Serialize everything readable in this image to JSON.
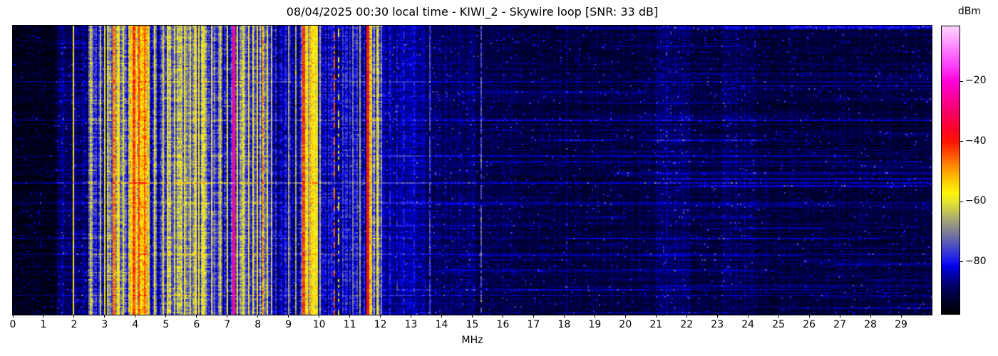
{
  "chart_data": {
    "type": "heatmap",
    "subtype": "spectrogram-waterfall",
    "title": "08/04/2025 00:30 local time - KIWI_2 - Skywire loop [SNR: 33 dB]",
    "xlabel": "MHz",
    "ylabel": "",
    "x_range": [
      0,
      30
    ],
    "x_ticks": [
      0,
      1,
      2,
      3,
      4,
      5,
      6,
      7,
      8,
      9,
      10,
      11,
      12,
      13,
      14,
      15,
      16,
      17,
      18,
      19,
      20,
      21,
      22,
      23,
      24,
      25,
      26,
      27,
      28,
      29
    ],
    "grid": false,
    "text_color": "#000000",
    "colorbar": {
      "label": "dBm",
      "position": "right",
      "vmin": -97.5,
      "vmax": -1.5,
      "ticks": [
        {
          "v": -20,
          "label": "−20"
        },
        {
          "v": -40,
          "label": "−40"
        },
        {
          "v": -60,
          "label": "−60"
        },
        {
          "v": -80,
          "label": "−80"
        }
      ],
      "stops": [
        {
          "t": 0.0,
          "color": "#000004"
        },
        {
          "t": 0.05,
          "color": "#000030"
        },
        {
          "t": 0.1,
          "color": "#00006a"
        },
        {
          "t": 0.14,
          "color": "#0000b4"
        },
        {
          "t": 0.165,
          "color": "#0000e6"
        },
        {
          "t": 0.182,
          "color": "#1414f0"
        },
        {
          "t": 0.21,
          "color": "#3232dc"
        },
        {
          "t": 0.25,
          "color": "#5a5ab4"
        },
        {
          "t": 0.29,
          "color": "#828294"
        },
        {
          "t": 0.33,
          "color": "#a8a871"
        },
        {
          "t": 0.365,
          "color": "#cccc4a"
        },
        {
          "t": 0.391,
          "color": "#e6e62e"
        },
        {
          "t": 0.42,
          "color": "#fdf409"
        },
        {
          "t": 0.46,
          "color": "#ffcd00"
        },
        {
          "t": 0.51,
          "color": "#ff9000"
        },
        {
          "t": 0.555,
          "color": "#ff5000"
        },
        {
          "t": 0.599,
          "color": "#ff1400"
        },
        {
          "t": 0.65,
          "color": "#ff0030"
        },
        {
          "t": 0.7,
          "color": "#f70064"
        },
        {
          "t": 0.755,
          "color": "#ff009e"
        },
        {
          "t": 0.807,
          "color": "#ff00d8"
        },
        {
          "t": 0.86,
          "color": "#fb3cf8"
        },
        {
          "t": 0.92,
          "color": "#ff7dff"
        },
        {
          "t": 0.97,
          "color": "#ffb5ff"
        },
        {
          "t": 1.0,
          "color": "#fdd2fd"
        }
      ]
    },
    "bands": [
      {
        "f0": 0.0,
        "f1": 1.42,
        "db": -94.5,
        "col": 1.0,
        "cell": 3.2
      },
      {
        "f0": 1.42,
        "f1": 1.95,
        "db": -88.0,
        "col": 2.5,
        "cell": 4.5
      },
      {
        "f0": 1.95,
        "f1": 2.45,
        "db": -87.5,
        "col": 3.0,
        "cell": 5.5
      },
      {
        "f0": 2.45,
        "f1": 2.7,
        "db": -73.0,
        "col": 8.0,
        "cell": 9.0
      },
      {
        "f0": 2.7,
        "f1": 3.05,
        "db": -79.0,
        "col": 8.0,
        "cell": 9.0
      },
      {
        "f0": 3.05,
        "f1": 3.55,
        "db": -67.0,
        "col": 9.0,
        "cell": 9.0
      },
      {
        "f0": 3.55,
        "f1": 3.78,
        "db": -77.0,
        "col": 8.0,
        "cell": 9.0
      },
      {
        "f0": 3.78,
        "f1": 4.45,
        "db": -58.0,
        "col": 8.0,
        "cell": 9.0
      },
      {
        "f0": 4.45,
        "f1": 5.0,
        "db": -78.0,
        "col": 9.0,
        "cell": 9.0
      },
      {
        "f0": 5.0,
        "f1": 6.35,
        "db": -70.0,
        "col": 9.0,
        "cell": 9.0
      },
      {
        "f0": 6.35,
        "f1": 7.15,
        "db": -78.0,
        "col": 9.0,
        "cell": 9.0
      },
      {
        "f0": 7.15,
        "f1": 8.35,
        "db": -74.0,
        "col": 10.0,
        "cell": 9.0
      },
      {
        "f0": 8.35,
        "f1": 9.4,
        "db": -83.0,
        "col": 6.0,
        "cell": 7.0
      },
      {
        "f0": 9.4,
        "f1": 9.95,
        "db": -63.0,
        "col": 8.0,
        "cell": 8.0
      },
      {
        "f0": 9.95,
        "f1": 10.42,
        "db": -83.0,
        "col": 6.0,
        "cell": 7.0
      },
      {
        "f0": 10.42,
        "f1": 11.55,
        "db": -82.0,
        "col": 7.0,
        "cell": 7.5
      },
      {
        "f0": 11.55,
        "f1": 12.05,
        "db": -71.0,
        "col": 9.0,
        "cell": 9.0
      },
      {
        "f0": 12.05,
        "f1": 13.45,
        "db": -85.5,
        "col": 2.2,
        "cell": 4.8
      },
      {
        "f0": 13.45,
        "f1": 15.1,
        "db": -88.5,
        "col": 1.8,
        "cell": 4.0
      },
      {
        "f0": 15.1,
        "f1": 16.5,
        "db": -90.5,
        "col": 1.4,
        "cell": 3.6
      },
      {
        "f0": 16.5,
        "f1": 21.0,
        "db": -91.5,
        "col": 1.2,
        "cell": 3.3
      },
      {
        "f0": 21.0,
        "f1": 22.1,
        "db": -89.0,
        "col": 1.6,
        "cell": 4.0
      },
      {
        "f0": 22.1,
        "f1": 23.2,
        "db": -91.5,
        "col": 1.2,
        "cell": 3.3
      },
      {
        "f0": 23.2,
        "f1": 24.2,
        "db": -90.0,
        "col": 1.5,
        "cell": 3.6
      },
      {
        "f0": 24.2,
        "f1": 30.01,
        "db": -92.0,
        "col": 1.2,
        "cell": 3.1
      }
    ],
    "lines": [
      {
        "f": 1.97,
        "w": 0.05,
        "db": -56
      },
      {
        "f": 2.55,
        "w": 0.05,
        "db": -65
      },
      {
        "f": 2.85,
        "w": 0.05,
        "db": -63
      },
      {
        "f": 3.02,
        "w": 0.05,
        "db": -59
      },
      {
        "f": 3.3,
        "w": 0.06,
        "db": -47
      },
      {
        "f": 3.45,
        "w": 0.05,
        "db": -57
      },
      {
        "f": 3.62,
        "w": 0.04,
        "db": -60
      },
      {
        "f": 3.95,
        "w": 0.06,
        "db": -43
      },
      {
        "f": 4.12,
        "w": 0.07,
        "db": -43
      },
      {
        "f": 4.3,
        "w": 0.06,
        "db": -45
      },
      {
        "f": 4.62,
        "w": 0.04,
        "db": -60
      },
      {
        "f": 4.9,
        "w": 0.05,
        "db": -61
      },
      {
        "f": 5.06,
        "w": 0.05,
        "db": -58
      },
      {
        "f": 5.3,
        "w": 0.04,
        "db": -62
      },
      {
        "f": 5.6,
        "w": 0.05,
        "db": -59
      },
      {
        "f": 5.8,
        "w": 0.04,
        "db": -61
      },
      {
        "f": 5.96,
        "w": 0.05,
        "db": -57
      },
      {
        "f": 6.07,
        "w": 0.05,
        "db": -59
      },
      {
        "f": 6.2,
        "w": 0.04,
        "db": -60
      },
      {
        "f": 6.5,
        "w": 0.04,
        "db": -61
      },
      {
        "f": 6.75,
        "w": 0.04,
        "db": -62
      },
      {
        "f": 7.0,
        "w": 0.04,
        "db": -60
      },
      {
        "f": 7.21,
        "w": 0.07,
        "db": -26,
        "j": 3
      },
      {
        "f": 7.35,
        "w": 0.05,
        "db": -58
      },
      {
        "f": 7.5,
        "w": 0.04,
        "db": -61
      },
      {
        "f": 7.7,
        "w": 0.05,
        "db": -57
      },
      {
        "f": 7.85,
        "w": 0.05,
        "db": -59
      },
      {
        "f": 8.0,
        "w": 0.05,
        "db": -56
      },
      {
        "f": 8.17,
        "w": 0.05,
        "db": -51,
        "j": 7
      },
      {
        "f": 8.3,
        "w": 0.04,
        "db": -60
      },
      {
        "f": 8.45,
        "w": 0.04,
        "db": -63
      },
      {
        "f": 9.0,
        "w": 0.04,
        "db": -67
      },
      {
        "f": 9.25,
        "w": 0.04,
        "db": -66
      },
      {
        "f": 9.5,
        "w": 0.06,
        "db": -43
      },
      {
        "f": 9.62,
        "w": 0.05,
        "db": -56
      },
      {
        "f": 9.72,
        "w": 0.06,
        "db": -51
      },
      {
        "f": 9.82,
        "w": 0.05,
        "db": -58
      },
      {
        "f": 9.92,
        "w": 0.05,
        "db": -60
      },
      {
        "f": 10.05,
        "w": 0.04,
        "db": -66
      },
      {
        "f": 10.5,
        "w": 0.06,
        "db": -45,
        "duty": 0.5
      },
      {
        "f": 10.65,
        "w": 0.04,
        "db": -59,
        "duty": 0.35
      },
      {
        "f": 11.1,
        "w": 0.03,
        "db": -72
      },
      {
        "f": 11.35,
        "w": 0.04,
        "db": -66
      },
      {
        "f": 11.6,
        "w": 0.09,
        "db": -39,
        "j": 4
      },
      {
        "f": 11.72,
        "w": 0.05,
        "db": -54
      },
      {
        "f": 11.9,
        "w": 0.05,
        "db": -61
      },
      {
        "f": 12.3,
        "w": 0.035,
        "db": -80,
        "duty": 0.8
      },
      {
        "f": 12.55,
        "w": 0.035,
        "db": -81,
        "duty": 0.8
      },
      {
        "f": 12.8,
        "w": 0.035,
        "db": -80,
        "duty": 0.8
      },
      {
        "f": 13.1,
        "w": 0.03,
        "db": -81,
        "duty": 0.8
      },
      {
        "f": 13.6,
        "w": 0.035,
        "db": -76,
        "duty": 0.9
      },
      {
        "f": 15.28,
        "w": 0.05,
        "db": -75,
        "duty": 0.9
      },
      {
        "f": 18.1,
        "w": 0.03,
        "db": -88
      },
      {
        "f": 21.35,
        "w": 0.04,
        "db": -85,
        "duty": 0.7
      }
    ],
    "streaks": {
      "seed": 20250804,
      "right_count": 90,
      "left_count": 20,
      "right_f_min": 11.8,
      "full_rows": [
        {
          "frac": 0.19,
          "boost": 5
        },
        {
          "frac": 0.325,
          "boost": 4
        },
        {
          "frac": 0.45,
          "boost": 4
        },
        {
          "frac": 0.543,
          "boost": 8
        },
        {
          "frac": 0.61,
          "boost": 4
        },
        {
          "frac": 0.735,
          "boost": 5
        },
        {
          "frac": 0.79,
          "boost": 6
        },
        {
          "frac": 0.93,
          "boost": 5
        }
      ]
    }
  }
}
